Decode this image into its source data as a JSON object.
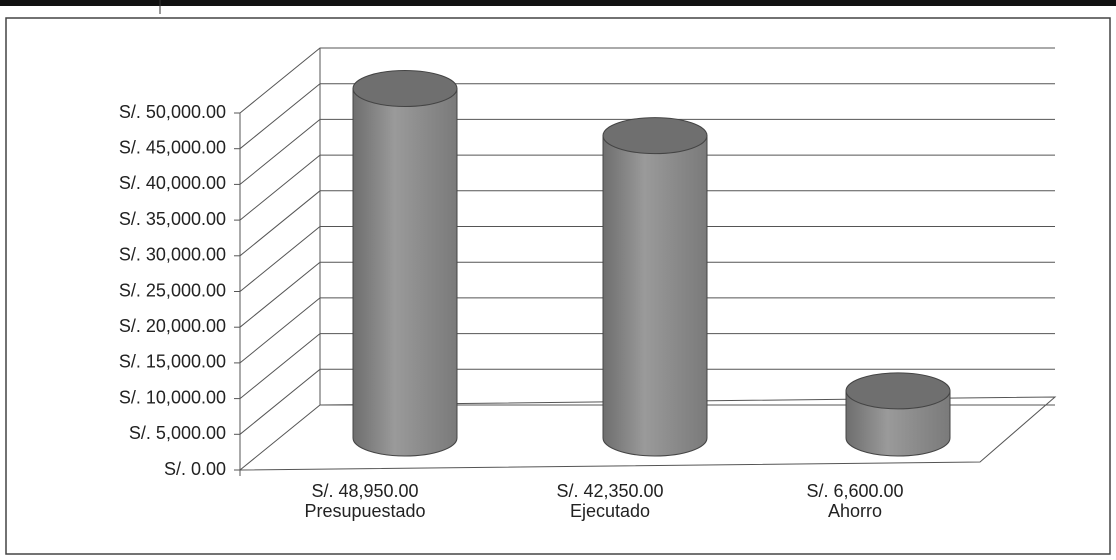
{
  "chart_data": {
    "type": "bar3d",
    "categories": [
      "Presupuestado",
      "Ejecutado",
      "Ahorro"
    ],
    "values": [
      48950,
      42350,
      6600
    ],
    "value_labels": [
      "S/. 48,950.00",
      "S/. 42,350.00",
      "S/. 6,600.00"
    ],
    "color": "#8a8a8a",
    "ylim": [
      0,
      50000
    ],
    "yticks": [
      {
        "value": 0,
        "label": "S/. 0.00"
      },
      {
        "value": 5000,
        "label": "S/. 5,000.00"
      },
      {
        "value": 10000,
        "label": "S/. 10,000.00"
      },
      {
        "value": 15000,
        "label": "S/. 15,000.00"
      },
      {
        "value": 20000,
        "label": "S/. 20,000.00"
      },
      {
        "value": 25000,
        "label": "S/. 25,000.00"
      },
      {
        "value": 30000,
        "label": "S/. 30,000.00"
      },
      {
        "value": 35000,
        "label": "S/. 35,000.00"
      },
      {
        "value": 40000,
        "label": "S/. 40,000.00"
      },
      {
        "value": 45000,
        "label": "S/. 45,000.00"
      },
      {
        "value": 50000,
        "label": "S/. 50,000.00"
      }
    ],
    "grid": true
  }
}
